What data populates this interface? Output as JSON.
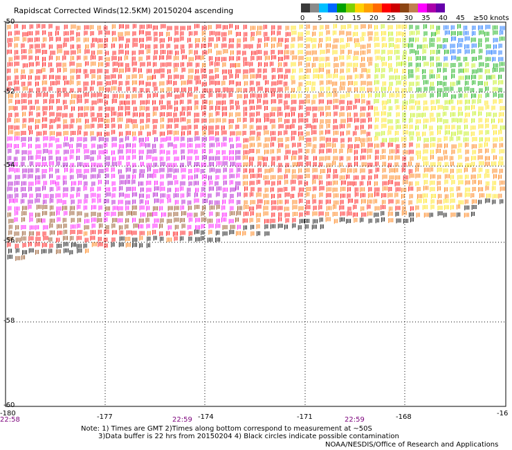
{
  "title": "Rapidscat Corrected Winds(12.5KM) 20150204 ascending",
  "legend": {
    "colors": [
      "#3a3a3a",
      "#8a8a8a",
      "#00bfff",
      "#0066ff",
      "#00a000",
      "#7fd000",
      "#ffd000",
      "#ffa000",
      "#ff6a00",
      "#ff0000",
      "#cc0000",
      "#8b4513",
      "#c08050",
      "#ff00ff",
      "#aa00aa",
      "#6600aa"
    ],
    "labels": [
      "0",
      "5",
      "10",
      "15",
      "20",
      "25",
      "30",
      "35",
      "40",
      "45",
      "≥50 knots"
    ]
  },
  "map": {
    "lat_labels": [
      "-50",
      "-52",
      "-54",
      "-56",
      "-58",
      "-60"
    ],
    "lon_labels": [
      "-180",
      "-177",
      "-174",
      "-171",
      "-168",
      "-16"
    ],
    "time_labels": [
      "22:58",
      "22:59",
      "22:59"
    ],
    "lat_range": [
      -60,
      -50
    ],
    "lon_range": [
      -180,
      -165
    ],
    "barb_palette": {
      "black": "#000000",
      "purple": "#aa00cc",
      "magenta": "#ff00ff",
      "brown": "#8b4513",
      "red": "#ff0000",
      "orange": "#ff7700",
      "yellow": "#ffe000",
      "lime": "#bbee00",
      "green": "#00aa00",
      "blue": "#0066ff",
      "cyan": "#00bbff"
    }
  },
  "notes": [
    "Note: 1) Times are GMT 2)Times along bottom correspond to measurement at ~50S",
    "3)Data buffer is 22 hrs from 20150204 4) Black circles indicate possible contamination"
  ],
  "credit": "NOAA/NESDIS/Office of Research and Applications"
}
